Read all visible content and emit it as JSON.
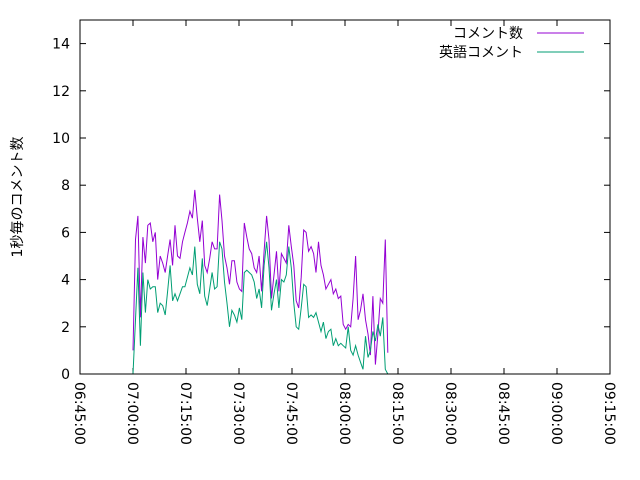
{
  "chart_data": {
    "type": "line",
    "title": "",
    "xlabel": "",
    "ylabel": "1秒毎のコメント数",
    "ylim": [
      0,
      15
    ],
    "xlim_minutes": [
      405,
      555
    ],
    "yticks": [
      0,
      2,
      4,
      6,
      8,
      10,
      12,
      14
    ],
    "xticks": [
      {
        "minute": 405,
        "label": "06:45:00"
      },
      {
        "minute": 420,
        "label": "07:00:00"
      },
      {
        "minute": 435,
        "label": "07:15:00"
      },
      {
        "minute": 450,
        "label": "07:30:00"
      },
      {
        "minute": 465,
        "label": "07:45:00"
      },
      {
        "minute": 480,
        "label": "08:00:00"
      },
      {
        "minute": 495,
        "label": "08:15:00"
      },
      {
        "minute": 510,
        "label": "08:30:00"
      },
      {
        "minute": 525,
        "label": "08:45:00"
      },
      {
        "minute": 540,
        "label": "09:00:00"
      },
      {
        "minute": 555,
        "label": "09:15:00"
      }
    ],
    "legend_position": "top-right",
    "series": [
      {
        "name": "コメント数",
        "color": "#9400d3",
        "points": [
          [
            420.0,
            1.0
          ],
          [
            420.7,
            5.7
          ],
          [
            421.4,
            6.7
          ],
          [
            422.1,
            2.4
          ],
          [
            422.8,
            5.8
          ],
          [
            423.5,
            4.7
          ],
          [
            424.2,
            6.3
          ],
          [
            424.9,
            6.4
          ],
          [
            425.6,
            5.6
          ],
          [
            426.3,
            6.0
          ],
          [
            427.0,
            4.0
          ],
          [
            427.7,
            5.0
          ],
          [
            428.4,
            4.7
          ],
          [
            429.1,
            4.3
          ],
          [
            429.8,
            5.0
          ],
          [
            430.5,
            5.7
          ],
          [
            431.2,
            4.6
          ],
          [
            431.9,
            6.3
          ],
          [
            432.6,
            5.0
          ],
          [
            433.3,
            4.9
          ],
          [
            434.0,
            5.6
          ],
          [
            434.7,
            6.0
          ],
          [
            435.4,
            6.4
          ],
          [
            436.1,
            6.9
          ],
          [
            436.8,
            6.6
          ],
          [
            437.5,
            7.8
          ],
          [
            438.2,
            6.6
          ],
          [
            438.9,
            5.6
          ],
          [
            439.6,
            6.5
          ],
          [
            440.3,
            4.6
          ],
          [
            441.0,
            4.3
          ],
          [
            441.7,
            4.9
          ],
          [
            442.4,
            5.6
          ],
          [
            443.1,
            5.3
          ],
          [
            443.8,
            5.3
          ],
          [
            444.5,
            7.6
          ],
          [
            445.2,
            6.5
          ],
          [
            445.9,
            5.0
          ],
          [
            446.6,
            4.5
          ],
          [
            447.3,
            3.8
          ],
          [
            448.0,
            4.8
          ],
          [
            448.7,
            4.8
          ],
          [
            449.4,
            3.9
          ],
          [
            450.1,
            3.6
          ],
          [
            450.8,
            3.5
          ],
          [
            451.5,
            6.4
          ],
          [
            452.2,
            5.8
          ],
          [
            452.9,
            5.3
          ],
          [
            453.6,
            5.1
          ],
          [
            454.3,
            4.5
          ],
          [
            455.0,
            4.3
          ],
          [
            455.7,
            5.0
          ],
          [
            456.4,
            3.5
          ],
          [
            457.1,
            5.2
          ],
          [
            457.8,
            6.7
          ],
          [
            458.5,
            5.7
          ],
          [
            459.2,
            3.2
          ],
          [
            459.9,
            4.2
          ],
          [
            460.6,
            5.2
          ],
          [
            461.3,
            3.5
          ],
          [
            462.0,
            5.1
          ],
          [
            462.7,
            4.9
          ],
          [
            463.4,
            4.7
          ],
          [
            464.1,
            6.3
          ],
          [
            464.8,
            5.4
          ],
          [
            465.5,
            4.6
          ],
          [
            466.2,
            3.1
          ],
          [
            466.9,
            2.8
          ],
          [
            467.6,
            4.1
          ],
          [
            468.3,
            6.1
          ],
          [
            469.0,
            6.0
          ],
          [
            469.7,
            5.2
          ],
          [
            470.4,
            5.4
          ],
          [
            471.1,
            5.1
          ],
          [
            471.8,
            4.3
          ],
          [
            472.5,
            5.6
          ],
          [
            473.2,
            4.6
          ],
          [
            473.9,
            4.2
          ],
          [
            474.6,
            3.6
          ],
          [
            475.3,
            3.8
          ],
          [
            476.0,
            4.0
          ],
          [
            476.7,
            3.4
          ],
          [
            477.4,
            3.6
          ],
          [
            478.1,
            3.2
          ],
          [
            478.8,
            3.3
          ],
          [
            479.5,
            2.1
          ],
          [
            480.2,
            1.9
          ],
          [
            480.9,
            2.1
          ],
          [
            481.6,
            2.0
          ],
          [
            482.3,
            3.2
          ],
          [
            483.0,
            5.0
          ],
          [
            483.7,
            2.3
          ],
          [
            484.4,
            2.7
          ],
          [
            485.1,
            3.4
          ],
          [
            485.8,
            2.3
          ],
          [
            486.5,
            1.7
          ],
          [
            487.2,
            0.8
          ],
          [
            487.9,
            3.3
          ],
          [
            488.6,
            0.4
          ],
          [
            489.3,
            1.7
          ],
          [
            490.0,
            3.2
          ],
          [
            490.7,
            3.0
          ],
          [
            491.4,
            5.7
          ],
          [
            492.1,
            0.9
          ]
        ]
      },
      {
        "name": "英語コメント",
        "color": "#009e73",
        "points": [
          [
            420.0,
            0.0
          ],
          [
            420.7,
            2.3
          ],
          [
            421.4,
            4.5
          ],
          [
            422.1,
            1.2
          ],
          [
            422.8,
            4.3
          ],
          [
            423.5,
            2.6
          ],
          [
            424.2,
            4.0
          ],
          [
            424.9,
            3.6
          ],
          [
            425.6,
            3.7
          ],
          [
            426.3,
            3.7
          ],
          [
            427.0,
            2.6
          ],
          [
            427.7,
            3.0
          ],
          [
            428.4,
            2.9
          ],
          [
            429.1,
            2.5
          ],
          [
            429.8,
            3.5
          ],
          [
            430.5,
            4.6
          ],
          [
            431.2,
            3.1
          ],
          [
            431.9,
            3.4
          ],
          [
            432.6,
            3.1
          ],
          [
            433.3,
            3.4
          ],
          [
            434.0,
            3.7
          ],
          [
            434.7,
            3.7
          ],
          [
            435.4,
            4.1
          ],
          [
            436.1,
            4.5
          ],
          [
            436.8,
            4.2
          ],
          [
            437.5,
            5.4
          ],
          [
            438.2,
            3.8
          ],
          [
            438.9,
            3.4
          ],
          [
            439.6,
            4.9
          ],
          [
            440.3,
            3.3
          ],
          [
            441.0,
            2.9
          ],
          [
            441.7,
            3.6
          ],
          [
            442.4,
            4.3
          ],
          [
            443.1,
            3.6
          ],
          [
            443.8,
            3.7
          ],
          [
            444.5,
            5.6
          ],
          [
            445.2,
            5.3
          ],
          [
            445.9,
            3.9
          ],
          [
            446.6,
            3.0
          ],
          [
            447.3,
            2.0
          ],
          [
            448.0,
            2.7
          ],
          [
            448.7,
            2.5
          ],
          [
            449.4,
            2.2
          ],
          [
            450.1,
            2.8
          ],
          [
            450.8,
            2.3
          ],
          [
            451.5,
            4.3
          ],
          [
            452.2,
            4.4
          ],
          [
            452.9,
            4.3
          ],
          [
            453.6,
            4.2
          ],
          [
            454.3,
            3.9
          ],
          [
            455.0,
            3.2
          ],
          [
            455.7,
            3.6
          ],
          [
            456.4,
            2.8
          ],
          [
            457.1,
            4.6
          ],
          [
            457.8,
            5.6
          ],
          [
            458.5,
            4.5
          ],
          [
            459.2,
            2.7
          ],
          [
            459.9,
            3.4
          ],
          [
            460.6,
            4.0
          ],
          [
            461.3,
            2.8
          ],
          [
            462.0,
            4.0
          ],
          [
            462.7,
            3.9
          ],
          [
            463.4,
            4.2
          ],
          [
            464.1,
            5.4
          ],
          [
            464.8,
            4.5
          ],
          [
            465.5,
            3.0
          ],
          [
            466.2,
            2.0
          ],
          [
            466.9,
            1.9
          ],
          [
            467.6,
            2.8
          ],
          [
            468.3,
            3.8
          ],
          [
            469.0,
            3.7
          ],
          [
            469.7,
            2.4
          ],
          [
            470.4,
            2.5
          ],
          [
            471.1,
            2.4
          ],
          [
            471.8,
            2.6
          ],
          [
            472.5,
            2.2
          ],
          [
            473.2,
            1.8
          ],
          [
            473.9,
            2.2
          ],
          [
            474.6,
            1.5
          ],
          [
            475.3,
            1.8
          ],
          [
            476.0,
            1.9
          ],
          [
            476.7,
            1.2
          ],
          [
            477.4,
            1.5
          ],
          [
            478.1,
            1.2
          ],
          [
            478.8,
            1.3
          ],
          [
            479.5,
            1.2
          ],
          [
            480.2,
            1.1
          ],
          [
            480.9,
            2.0
          ],
          [
            481.6,
            1.0
          ],
          [
            482.3,
            0.8
          ],
          [
            483.0,
            1.2
          ],
          [
            483.7,
            0.8
          ],
          [
            484.4,
            0.5
          ],
          [
            485.1,
            0.2
          ],
          [
            485.8,
            1.6
          ],
          [
            486.5,
            0.7
          ],
          [
            487.2,
            1.0
          ],
          [
            487.9,
            1.8
          ],
          [
            488.6,
            1.4
          ],
          [
            489.3,
            2.1
          ],
          [
            490.0,
            1.6
          ],
          [
            490.7,
            2.4
          ],
          [
            491.4,
            0.2
          ],
          [
            492.1,
            0.0
          ]
        ]
      }
    ]
  }
}
